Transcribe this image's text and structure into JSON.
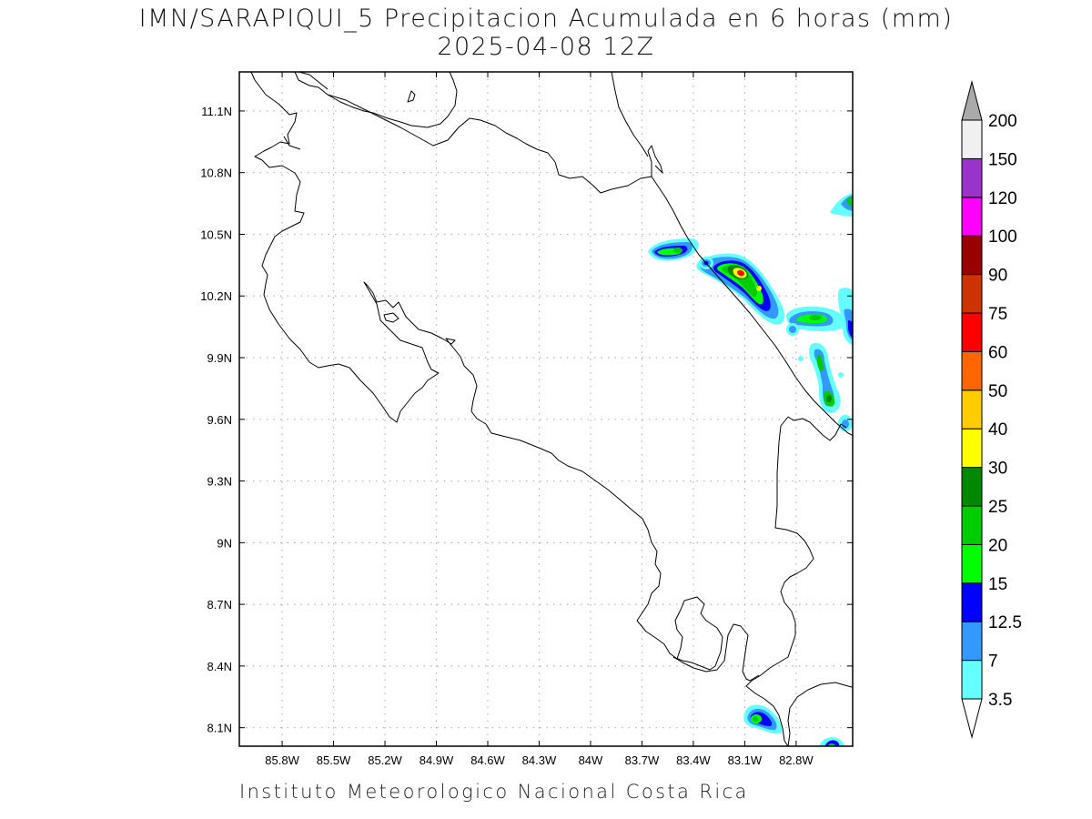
{
  "title_line1": "IMN/SARAPIQUI_5 Precipitacion Acumulada en 6 horas (mm)",
  "title_line2": "2025-04-08 12Z",
  "footer": "Instituto Meteorologico Nacional Costa Rica",
  "map": {
    "lon_range": [
      -86.05,
      -82.47
    ],
    "lat_range": [
      8.01,
      11.29
    ],
    "lon_ticks": [
      {
        "value": -85.8,
        "label": "85.8W"
      },
      {
        "value": -85.5,
        "label": "85.5W"
      },
      {
        "value": -85.2,
        "label": "85.2W"
      },
      {
        "value": -84.9,
        "label": "84.9W"
      },
      {
        "value": -84.6,
        "label": "84.6W"
      },
      {
        "value": -84.3,
        "label": "84.3W"
      },
      {
        "value": -84.0,
        "label": "84W"
      },
      {
        "value": -83.7,
        "label": "83.7W"
      },
      {
        "value": -83.4,
        "label": "83.4W"
      },
      {
        "value": -83.1,
        "label": "83.1W"
      },
      {
        "value": -82.8,
        "label": "82.8W"
      }
    ],
    "lat_ticks": [
      {
        "value": 8.1,
        "label": "8.1N"
      },
      {
        "value": 8.4,
        "label": "8.4N"
      },
      {
        "value": 8.7,
        "label": "8.7N"
      },
      {
        "value": 9.0,
        "label": "9N"
      },
      {
        "value": 9.3,
        "label": "9.3N"
      },
      {
        "value": 9.6,
        "label": "9.6N"
      },
      {
        "value": 9.9,
        "label": "9.9N"
      },
      {
        "value": 10.2,
        "label": "10.2N"
      },
      {
        "value": 10.5,
        "label": "10.5N"
      },
      {
        "value": 10.8,
        "label": "10.8N"
      },
      {
        "value": 11.1,
        "label": "11.1N"
      }
    ],
    "grid": true
  },
  "colorbar": {
    "levels": [
      "3.5",
      "7",
      "12.5",
      "15",
      "20",
      "25",
      "30",
      "40",
      "50",
      "60",
      "75",
      "90",
      "100",
      "120",
      "150",
      "200"
    ],
    "colors": [
      "#ffffff",
      "#66ffff",
      "#3399ff",
      "#0000ff",
      "#00ff00",
      "#00cc00",
      "#008800",
      "#ffff00",
      "#ffcc00",
      "#ff6600",
      "#ff0000",
      "#cc3300",
      "#990000",
      "#ff00ff",
      "#9933cc",
      "#f0f0f0",
      "#aaaaaa"
    ]
  },
  "precip_cells": [
    {
      "lon": -83.58,
      "lat": 10.43,
      "value": 25
    },
    {
      "lon": -83.45,
      "lat": 10.45,
      "value": 25
    },
    {
      "lon": -83.12,
      "lat": 10.31,
      "value": 40
    },
    {
      "lon": -83.02,
      "lat": 10.22,
      "value": 25
    },
    {
      "lon": -82.92,
      "lat": 10.15,
      "value": 20
    },
    {
      "lon": -82.68,
      "lat": 10.1,
      "value": 25
    },
    {
      "lon": -82.49,
      "lat": 10.04,
      "value": 15
    },
    {
      "lon": -82.64,
      "lat": 9.88,
      "value": 15
    },
    {
      "lon": -82.61,
      "lat": 9.7,
      "value": 20
    },
    {
      "lon": -82.51,
      "lat": 9.58,
      "value": 7
    },
    {
      "lon": -82.49,
      "lat": 10.67,
      "value": 12.5
    },
    {
      "lon": -83.37,
      "lat": 10.38,
      "value": 12.5
    },
    {
      "lon": -82.96,
      "lat": 8.13,
      "value": 25
    },
    {
      "lon": -82.58,
      "lat": 8.02,
      "value": 20
    }
  ]
}
